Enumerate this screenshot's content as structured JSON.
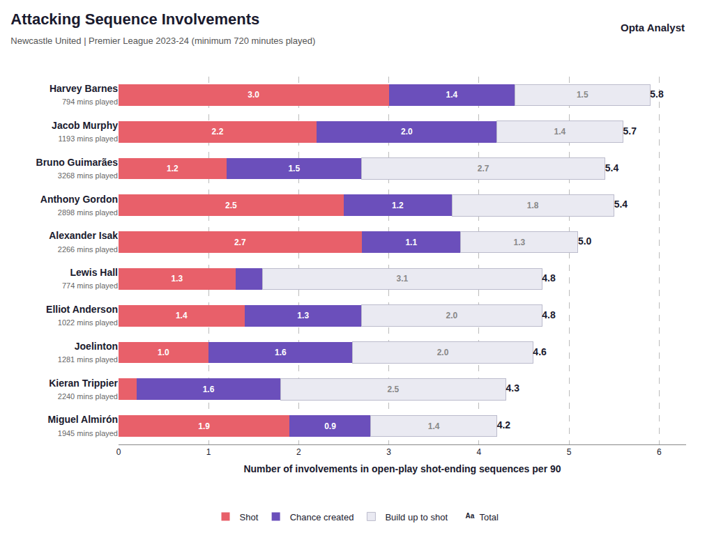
{
  "chart_data": {
    "type": "bar",
    "orientation": "horizontal",
    "stacked": true,
    "title": "Attacking Sequence Involvements",
    "subtitle": "Newcastle United | Premier League 2023-24 (minimum 720 minutes played)",
    "xlabel": "Number of involvements in open-play shot-ending sequences per 90",
    "annotations": [
      "Opta Analyst"
    ],
    "categories": [
      "Harvey Barnes",
      "Jacob Murphy",
      "Bruno Guimarães",
      "Anthony Gordon",
      "Alexander Isak",
      "Lewis Hall",
      "Elliot Anderson",
      "Joelinton",
      "Kieran Trippier",
      "Miguel Almirón"
    ],
    "minutes_labels": [
      "794 mins played",
      "1193 mins played",
      "3268 mins played",
      "2898 mins played",
      "2266 mins played",
      "774 mins played",
      "1022 mins played",
      "1281 mins played",
      "2240 mins played",
      "1945 mins played"
    ],
    "series": [
      {
        "name": "Shot",
        "color": "#E8606A",
        "values": [
          3.0,
          2.2,
          1.2,
          2.5,
          2.7,
          1.3,
          1.4,
          1.0,
          0.2,
          1.9
        ],
        "value_labels": [
          "3.0",
          "2.2",
          "1.2",
          "2.5",
          "2.7",
          "1.3",
          "1.4",
          "1.0",
          null,
          "1.9"
        ]
      },
      {
        "name": "Chance created",
        "color": "#6B4FBB",
        "values": [
          1.4,
          2.0,
          1.5,
          1.2,
          1.1,
          0.3,
          1.3,
          1.6,
          1.6,
          0.9
        ],
        "value_labels": [
          "1.4",
          "2.0",
          "1.5",
          "1.2",
          "1.1",
          null,
          "1.3",
          "1.6",
          "1.6",
          "0.9"
        ]
      },
      {
        "name": "Build up to shot",
        "color": "#EAEAF2",
        "values": [
          1.5,
          1.4,
          2.7,
          1.8,
          1.3,
          3.1,
          2.0,
          2.0,
          2.5,
          1.4
        ],
        "value_labels": [
          "1.5",
          "1.4",
          "2.7",
          "1.8",
          "1.3",
          "3.1",
          "2.0",
          "2.0",
          "2.5",
          "1.4"
        ]
      }
    ],
    "totals": {
      "name": "Total",
      "values": [
        5.8,
        5.7,
        5.4,
        5.4,
        5.0,
        4.8,
        4.8,
        4.6,
        4.3,
        4.2
      ],
      "value_labels": [
        "5.8",
        "5.7",
        "5.4",
        "5.4",
        "5.0",
        "4.8",
        "4.8",
        "4.6",
        "4.3",
        "4.2"
      ]
    },
    "xlim": [
      0,
      6.3
    ],
    "xticks": [
      0,
      1,
      2,
      3,
      4,
      5,
      6
    ],
    "grid": true,
    "data_labels": true,
    "legend": "bottom"
  }
}
